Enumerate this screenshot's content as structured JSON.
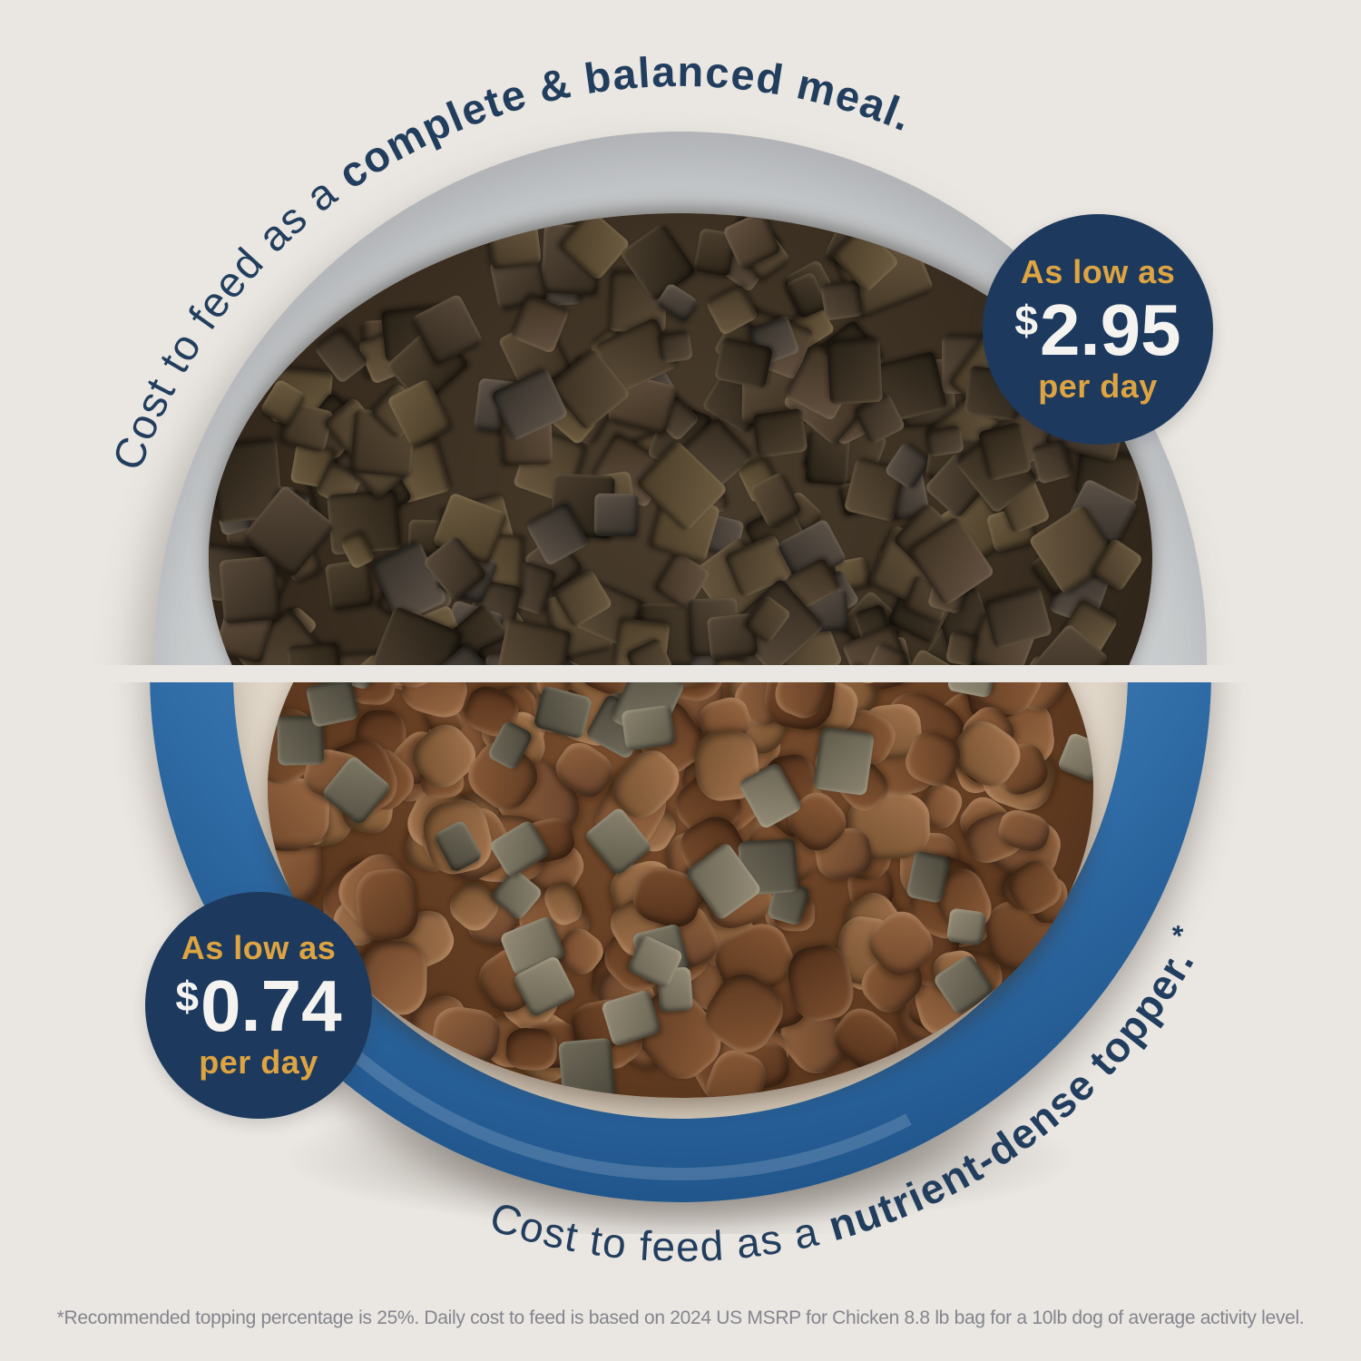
{
  "title": "Cost to feed comparison",
  "background_color": "#eae6e1",
  "colors": {
    "navy": "#1d3a5e",
    "text_navy": "#223e5e",
    "gold": "#dda441",
    "price_white": "#f5f3f0",
    "footnote_gray": "#84858e",
    "bowl_top_gray": "#c9ccce",
    "bowl_bottom_blue": "#2f6ba5",
    "bowl_inner_cream": "#e3d9cb",
    "jerky_palette": [
      "linear-gradient(135deg,#5c4c38,#3a2f21)",
      "linear-gradient(160deg,#4e4130,#2c2418)",
      "linear-gradient(120deg,#6a5840,#443827)",
      "linear-gradient(140deg,#57493a,#332a1e)",
      "linear-gradient(150deg,#645141,#3e3222)",
      "linear-gradient(130deg,#4a3d2e,#262015)",
      "linear-gradient(145deg,#6d5c41,#4a3c28)",
      "linear-gradient(155deg,#5d5248,#35302a)"
    ],
    "kibble_palette": [
      "linear-gradient(135deg,#9a6a44,#6e452a)",
      "linear-gradient(150deg,#8c5c38,#5e3a22)",
      "linear-gradient(120deg,#a3744e,#74502f)",
      "linear-gradient(140deg,#855634,#5a371f)",
      "linear-gradient(160deg,#7b4e2e,#512f1a)",
      "linear-gradient(130deg,#93643f,#64402a)"
    ],
    "topper_palette": [
      "linear-gradient(135deg,#8a8370,#5f5a49)",
      "linear-gradient(150deg,#7d7765,#565244)",
      "linear-gradient(125deg,#948c77,#6a6453)",
      "linear-gradient(145deg,#6f6a59,#4a463a)"
    ]
  },
  "top_section": {
    "curved_text": {
      "regular": "Cost to feed as a ",
      "bold": "complete & balanced meal."
    },
    "badge": {
      "prefix": "As low as",
      "currency": "$",
      "amount": "2.95",
      "suffix": "per day"
    },
    "photo_alt": "Gray bowl filled with freeze-dried raw food pieces"
  },
  "bottom_section": {
    "curved_text": {
      "regular": "Cost to feed as a ",
      "bold": "nutrient-dense topper.",
      "footnote_marker": "*"
    },
    "badge": {
      "prefix": "As low as",
      "currency": "$",
      "amount": "0.74",
      "suffix": "per day"
    },
    "photo_alt": "Blue bowl of kibble topped with freeze-dried pieces"
  },
  "footnote": "*Recommended topping percentage is 25%. Daily cost to feed is based on 2024 US MSRP for Chicken 8.8 lb bag for a 10lb dog of average activity level."
}
